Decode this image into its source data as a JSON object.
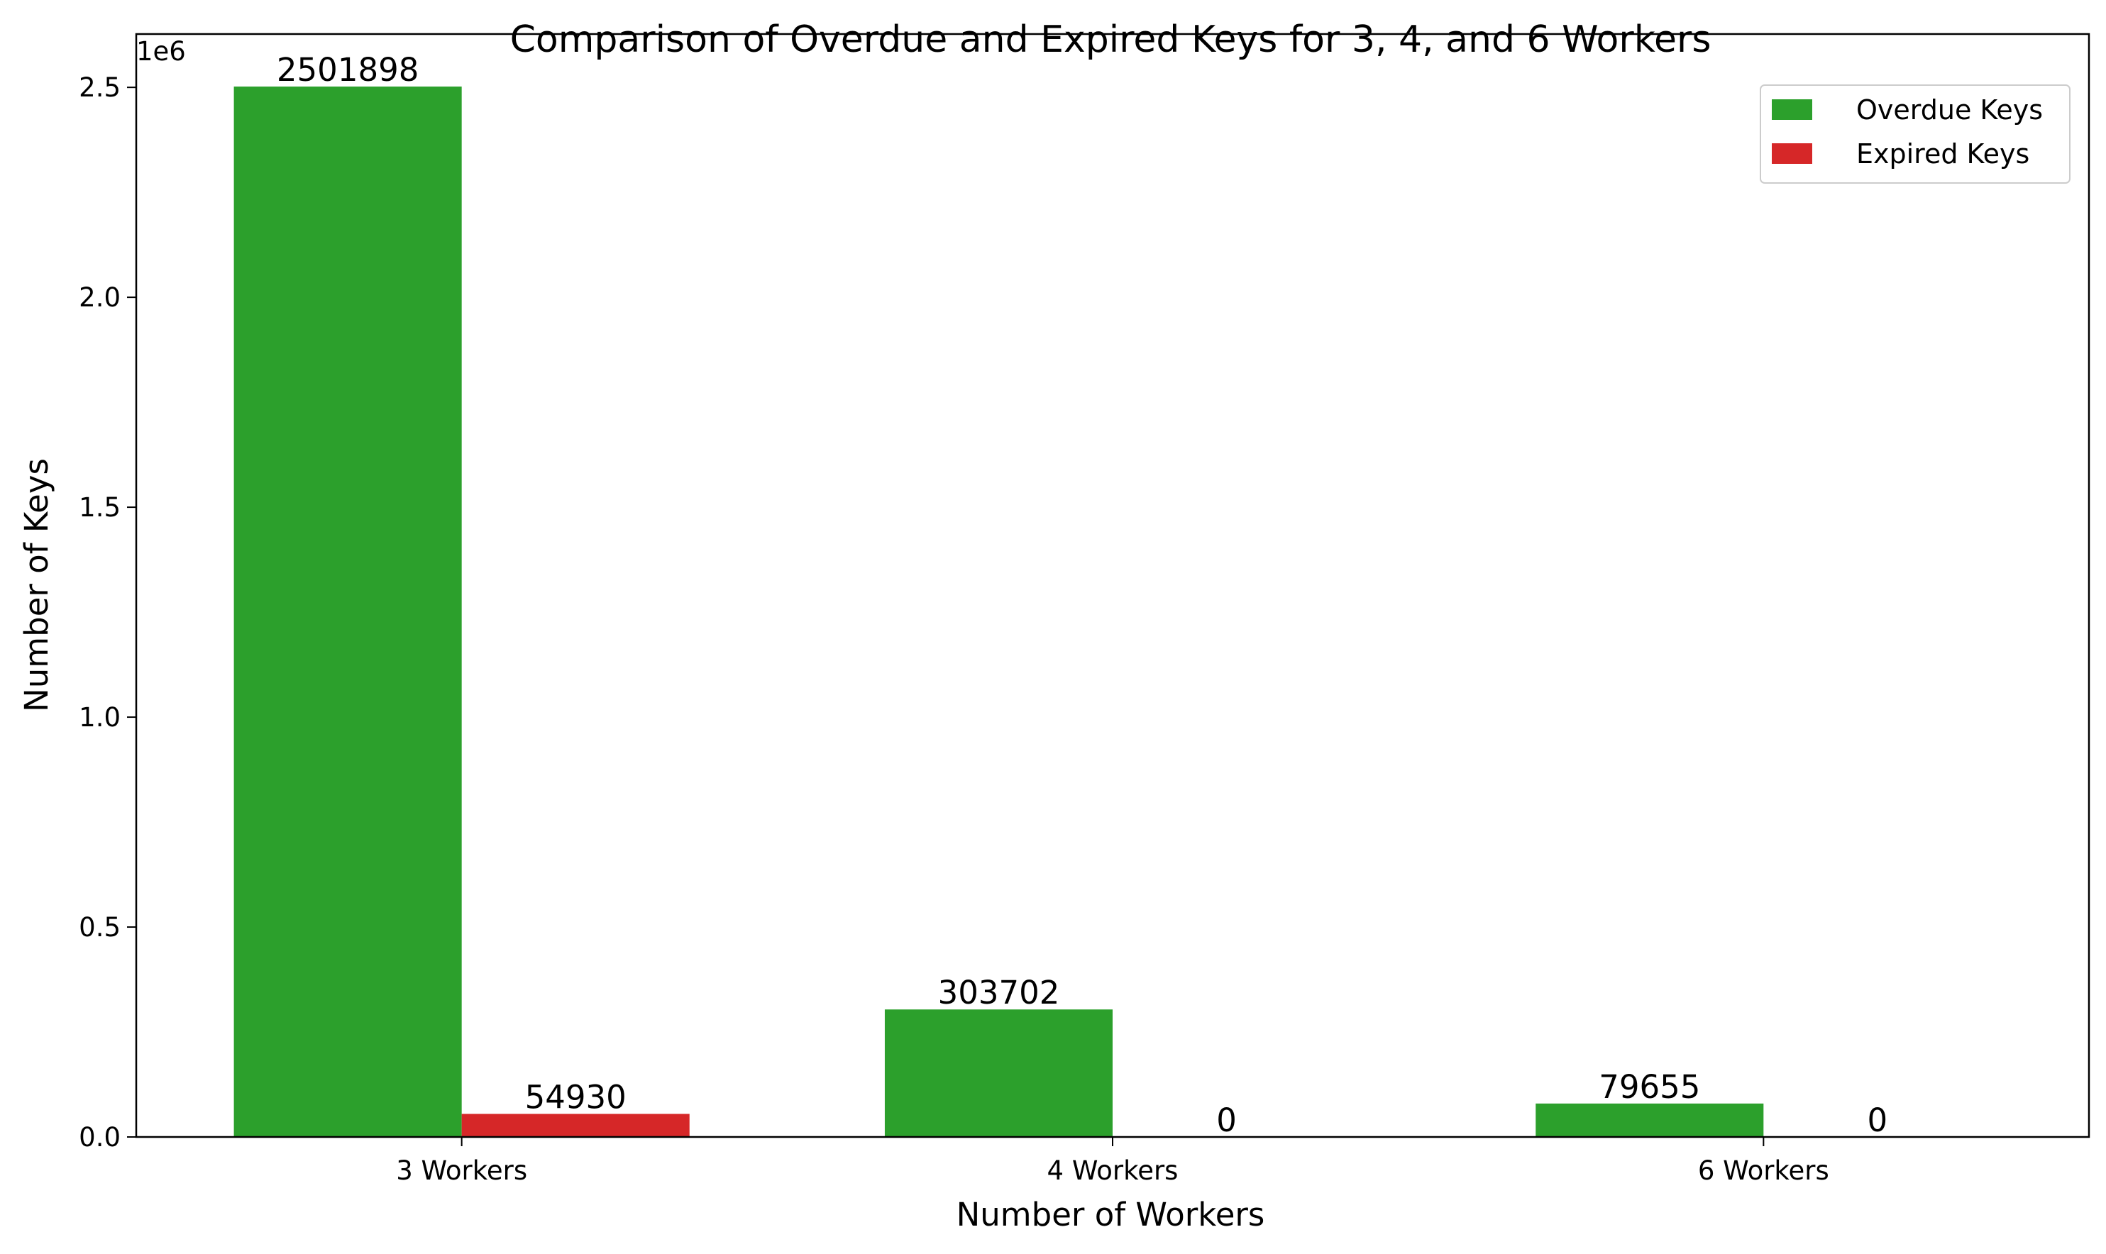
{
  "chart_data": {
    "type": "bar",
    "title": "Comparison of Overdue and Expired Keys for 3, 4, and 6 Workers",
    "xlabel": "Number of Workers",
    "ylabel": "Number of Keys",
    "y_offset_label": "1e6",
    "categories": [
      "3 Workers",
      "4 Workers",
      "6 Workers"
    ],
    "series": [
      {
        "name": "Overdue Keys",
        "values": [
          2501898,
          303702,
          79655
        ],
        "color": "#2ca02c"
      },
      {
        "name": "Expired Keys",
        "values": [
          54930,
          0,
          0
        ],
        "color": "#d62728"
      }
    ],
    "data_labels": [
      [
        "2501898",
        "303702",
        "79655"
      ],
      [
        "54930",
        "0",
        "0"
      ]
    ],
    "ylim": [
      0,
      2626993
    ],
    "y_ticks": [
      0,
      500000,
      1000000,
      1500000,
      2000000,
      2500000
    ],
    "y_tick_labels": [
      "0.0",
      "0.5",
      "1.0",
      "1.5",
      "2.0",
      "2.5"
    ],
    "grid": false,
    "legend_position": "top-right"
  }
}
